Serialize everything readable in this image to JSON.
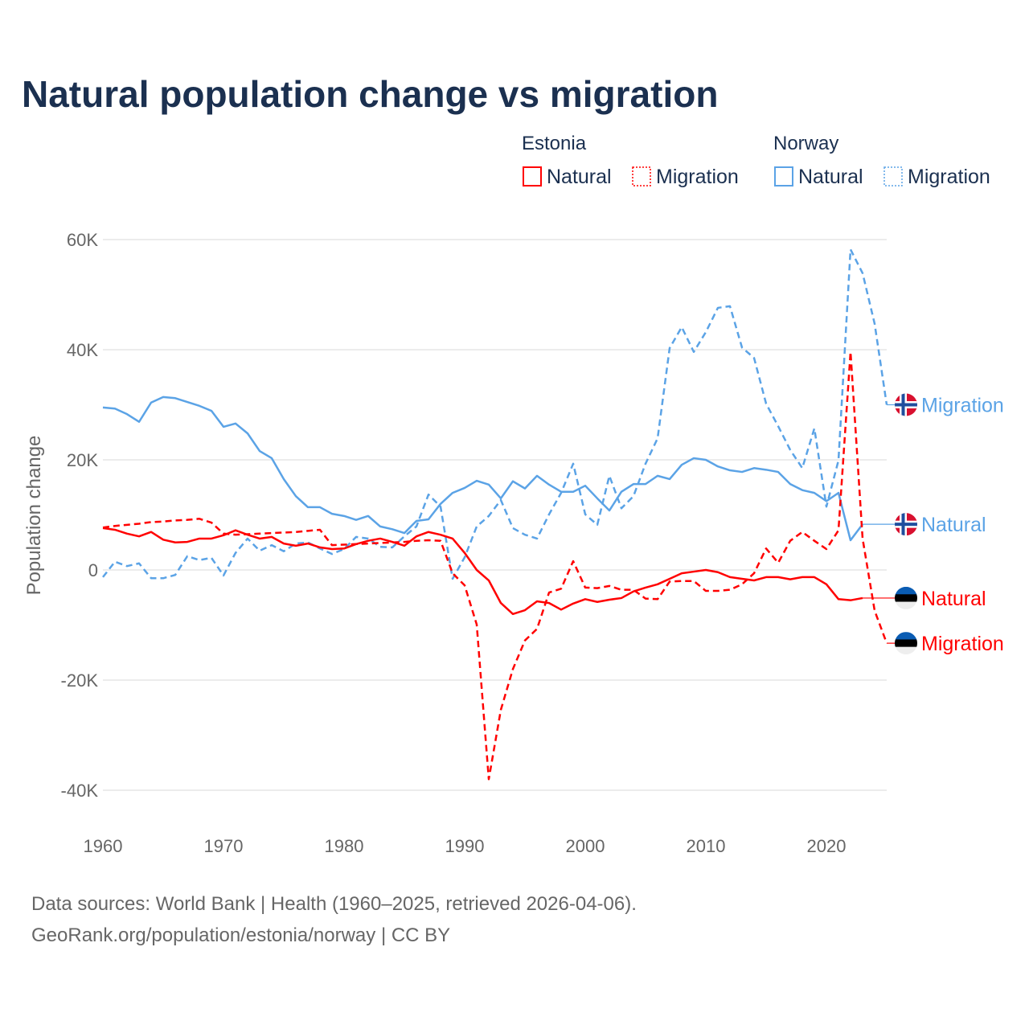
{
  "title": "Natural population change vs migration",
  "legend": {
    "groups": [
      {
        "name": "Estonia",
        "items": [
          {
            "label": "Natural",
            "style": "solid"
          },
          {
            "label": "Migration",
            "style": "dotted"
          }
        ],
        "color": "#ff0000"
      },
      {
        "name": "Norway",
        "items": [
          {
            "label": "Natural",
            "style": "solid"
          },
          {
            "label": "Migration",
            "style": "dotted"
          }
        ],
        "color": "#5ba3e6"
      }
    ]
  },
  "footer": {
    "line1": "Data sources: World Bank | Health (1960–2025, retrieved 2026-04-06).",
    "line2": "GeoRank.org/population/estonia/norway | CC BY"
  },
  "chart_data": {
    "type": "line",
    "title": "Natural population change vs migration",
    "xlabel": "",
    "ylabel": "Population change",
    "xlim": [
      1960,
      2025
    ],
    "ylim": [
      -40000,
      60000
    ],
    "xticks": [
      1960,
      1970,
      1980,
      1990,
      2000,
      2010,
      2020
    ],
    "yticks": [
      {
        "v": 60000,
        "label": "60K"
      },
      {
        "v": 40000,
        "label": "40K"
      },
      {
        "v": 20000,
        "label": "20K"
      },
      {
        "v": 0,
        "label": "0"
      },
      {
        "v": -20000,
        "label": "-20K"
      },
      {
        "v": -40000,
        "label": "-40K"
      }
    ],
    "grid": true,
    "legend_placement": "top-right",
    "series": [
      {
        "name": "Norway Migration",
        "end_label": "Migration",
        "country": "Norway",
        "color": "#5ba3e6",
        "dashed": true,
        "start_year": 1960,
        "values": [
          -1300,
          1500,
          700,
          1200,
          -1500,
          -1500,
          -900,
          2500,
          1800,
          2200,
          -1000,
          3100,
          5700,
          3500,
          4500,
          3400,
          4800,
          5000,
          3900,
          2900,
          3800,
          6000,
          5700,
          4200,
          4100,
          6100,
          7900,
          13700,
          11500,
          -1600,
          2300,
          7900,
          9800,
          12700,
          7600,
          6400,
          5700,
          10100,
          14000,
          19300,
          10100,
          8200,
          17100,
          11200,
          13400,
          19300,
          23900,
          40300,
          44100,
          39600,
          43200,
          47600,
          47900,
          40400,
          38500,
          30200,
          26100,
          21800,
          18500,
          25700,
          11500,
          19900,
          58200,
          53900,
          44700,
          30000
        ]
      },
      {
        "name": "Norway Natural",
        "end_label": "Natural",
        "country": "Norway",
        "color": "#5ba3e6",
        "dashed": false,
        "start_year": 1960,
        "values": [
          29500,
          29300,
          28300,
          26900,
          30400,
          31400,
          31200,
          30500,
          29800,
          28900,
          26000,
          26600,
          24800,
          21600,
          20300,
          16500,
          13400,
          11400,
          11400,
          10200,
          9800,
          9100,
          9800,
          7900,
          7400,
          6700,
          8900,
          9200,
          12000,
          14000,
          14900,
          16200,
          15500,
          13000,
          16100,
          14800,
          17100,
          15500,
          14200,
          14200,
          15300,
          13000,
          10800,
          14200,
          15600,
          15600,
          17100,
          16500,
          19100,
          20300,
          20000,
          18800,
          18100,
          17800,
          18500,
          18200,
          17800,
          15600,
          14500,
          14000,
          12500,
          14000,
          5400,
          8300
        ]
      },
      {
        "name": "Estonia Natural",
        "end_label": "Natural",
        "country": "Estonia",
        "color": "#ff0000",
        "dashed": false,
        "start_year": 1960,
        "values": [
          7600,
          7300,
          6600,
          6100,
          6900,
          5500,
          5000,
          5100,
          5700,
          5700,
          6300,
          7200,
          6400,
          5700,
          6000,
          4800,
          4400,
          4800,
          4100,
          3800,
          3900,
          4700,
          5300,
          5700,
          5100,
          4400,
          6100,
          6900,
          6400,
          5700,
          3100,
          0,
          -1900,
          -6000,
          -8000,
          -7300,
          -5700,
          -6000,
          -7200,
          -6100,
          -5300,
          -5800,
          -5400,
          -5100,
          -3900,
          -3200,
          -2600,
          -1600,
          -600,
          -300,
          0,
          -400,
          -1300,
          -1600,
          -1900,
          -1300,
          -1300,
          -1700,
          -1300,
          -1300,
          -2600,
          -5300,
          -5500,
          -5100
        ]
      },
      {
        "name": "Estonia Migration",
        "end_label": "Migration",
        "country": "Estonia",
        "color": "#ff0000",
        "dashed": true,
        "start_year": 1960,
        "values": [
          7700,
          8000,
          8200,
          8400,
          8700,
          8800,
          9000,
          9100,
          9300,
          8600,
          6600,
          6400,
          6500,
          6600,
          6700,
          6800,
          6900,
          7100,
          7300,
          4500,
          4600,
          4700,
          4800,
          4900,
          5000,
          5100,
          5300,
          5400,
          5300,
          -600,
          -2800,
          -9900,
          -38000,
          -25400,
          -18000,
          -12800,
          -10700,
          -4100,
          -3400,
          1600,
          -3200,
          -3300,
          -2900,
          -3600,
          -3600,
          -5200,
          -5300,
          -2100,
          -2000,
          -2000,
          -3800,
          -3800,
          -3600,
          -2600,
          -600,
          3900,
          1300,
          5300,
          6900,
          5300,
          3800,
          7200,
          39600,
          5700,
          -7400,
          -13300
        ]
      }
    ]
  }
}
